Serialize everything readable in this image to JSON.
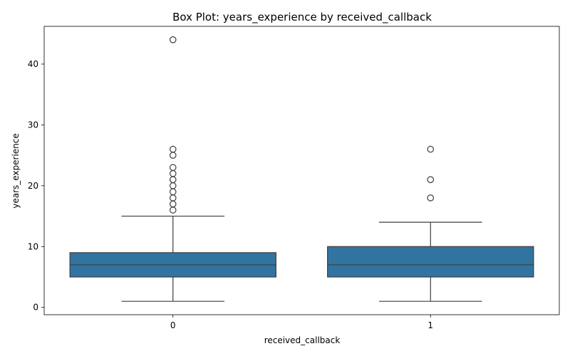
{
  "chart_data": {
    "type": "box",
    "title": "Box Plot: years_experience by received_callback",
    "xlabel": "received_callback",
    "ylabel": "years_experience",
    "categories": [
      "0",
      "1"
    ],
    "ylim": [
      -1.2,
      46.2
    ],
    "yticks": [
      0,
      10,
      20,
      30,
      40
    ],
    "grid": false,
    "box_color": "#3274a1",
    "line_color": "#3d3d3d",
    "boxes": [
      {
        "category": "0",
        "whisker_low": 1,
        "q1": 5,
        "median": 7,
        "q3": 9,
        "whisker_high": 15,
        "outliers": [
          16,
          17,
          18,
          19,
          20,
          21,
          22,
          23,
          25,
          26,
          44
        ]
      },
      {
        "category": "1",
        "whisker_low": 1,
        "q1": 5,
        "median": 7,
        "q3": 10,
        "whisker_high": 14,
        "outliers": [
          18,
          21,
          26
        ]
      }
    ]
  }
}
